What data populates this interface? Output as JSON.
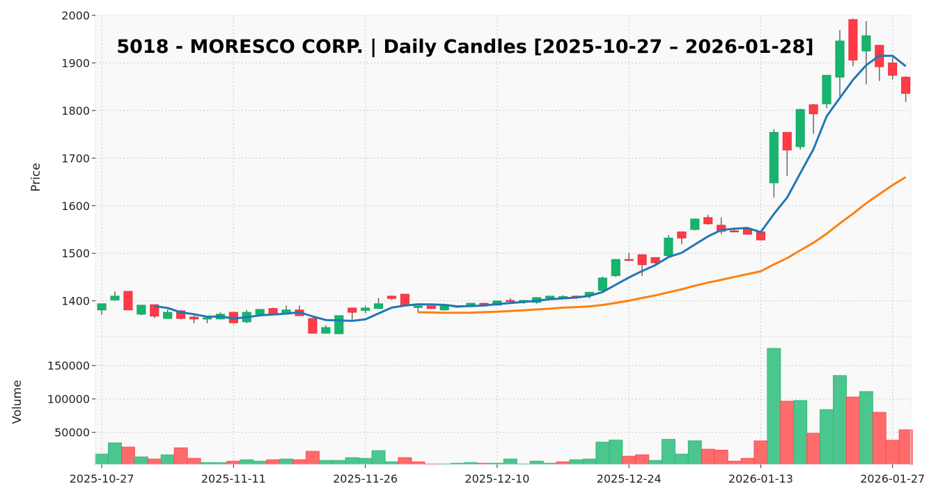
{
  "chart_data": {
    "type": "candlestick",
    "title": "5018 - MORESCO CORP. | Daily Candles [2025-10-27 – 2026-01-28]",
    "price_panel": {
      "ylabel": "Price",
      "ylim": [
        1325,
        2000
      ],
      "yticks": [
        1400,
        1500,
        1600,
        1700,
        1800,
        1900,
        2000
      ],
      "grid": true
    },
    "volume_panel": {
      "ylabel": "Volume",
      "ylim": [
        1800,
        193400
      ],
      "yticks": [
        50000,
        100000,
        150000
      ],
      "grid": true
    },
    "xtick_indices": [
      0,
      10,
      20,
      30,
      40,
      50,
      60
    ],
    "dates": [
      "2025-10-27",
      "2025-10-28",
      "2025-10-29",
      "2025-10-30",
      "2025-10-31",
      "2025-11-04",
      "2025-11-05",
      "2025-11-06",
      "2025-11-07",
      "2025-11-10",
      "2025-11-11",
      "2025-11-12",
      "2025-11-13",
      "2025-11-14",
      "2025-11-17",
      "2025-11-18",
      "2025-11-19",
      "2025-11-20",
      "2025-11-21",
      "2025-11-25",
      "2025-11-26",
      "2025-11-27",
      "2025-11-28",
      "2025-12-01",
      "2025-12-02",
      "2025-12-03",
      "2025-12-04",
      "2025-12-05",
      "2025-12-08",
      "2025-12-09",
      "2025-12-10",
      "2025-12-11",
      "2025-12-12",
      "2025-12-15",
      "2025-12-16",
      "2025-12-17",
      "2025-12-18",
      "2025-12-19",
      "2025-12-22",
      "2025-12-23",
      "2025-12-24",
      "2025-12-25",
      "2025-12-26",
      "2025-12-29",
      "2025-12-30",
      "2026-01-05",
      "2026-01-06",
      "2026-01-07",
      "2026-01-08",
      "2026-01-09",
      "2026-01-13",
      "2026-01-14",
      "2026-01-15",
      "2026-01-16",
      "2026-01-19",
      "2026-01-20",
      "2026-01-21",
      "2026-01-22",
      "2026-01-23",
      "2026-01-26",
      "2026-01-27",
      "2026-01-28"
    ],
    "open": [
      1381,
      1402,
      1420,
      1372,
      1392,
      1363,
      1379,
      1366,
      1362,
      1362,
      1376,
      1356,
      1372,
      1384,
      1373,
      1381,
      1363,
      1332,
      1331,
      1385,
      1380,
      1384,
      1410,
      1414,
      1386,
      1389,
      1381,
      1388,
      1392,
      1395,
      1391,
      1401,
      1398,
      1397,
      1406,
      1406,
      1410,
      1412,
      1422,
      1453,
      1487,
      1497,
      1491,
      1495,
      1545,
      1550,
      1575,
      1559,
      1547,
      1551,
      1545,
      1648,
      1754,
      1724,
      1812,
      1814,
      1870,
      1991,
      1925,
      1937,
      1900,
      1870
    ],
    "high": [
      1394,
      1420,
      1421,
      1391,
      1393,
      1382,
      1381,
      1370,
      1368,
      1376,
      1377,
      1381,
      1383,
      1386,
      1390,
      1390,
      1364,
      1349,
      1369,
      1386,
      1390,
      1406,
      1411,
      1415,
      1395,
      1390,
      1389,
      1390,
      1395,
      1396,
      1400,
      1406,
      1402,
      1407,
      1410,
      1412,
      1411,
      1419,
      1451,
      1488,
      1501,
      1498,
      1492,
      1538,
      1546,
      1573,
      1581,
      1575,
      1554,
      1552,
      1546,
      1761,
      1754,
      1804,
      1814,
      1874,
      1969,
      1993,
      1988,
      1937,
      1912,
      1872
    ],
    "low": [
      1371,
      1400,
      1381,
      1370,
      1364,
      1363,
      1361,
      1353,
      1353,
      1361,
      1352,
      1353,
      1371,
      1372,
      1372,
      1368,
      1332,
      1332,
      1330,
      1361,
      1374,
      1383,
      1402,
      1390,
      1375,
      1383,
      1380,
      1385,
      1387,
      1388,
      1390,
      1396,
      1394,
      1394,
      1405,
      1405,
      1404,
      1405,
      1420,
      1450,
      1484,
      1452,
      1478,
      1494,
      1519,
      1548,
      1560,
      1540,
      1545,
      1539,
      1527,
      1617,
      1662,
      1718,
      1751,
      1805,
      1830,
      1893,
      1855,
      1862,
      1865,
      1818
    ],
    "close": [
      1394,
      1410,
      1381,
      1391,
      1368,
      1376,
      1363,
      1362,
      1364,
      1372,
      1354,
      1376,
      1382,
      1373,
      1381,
      1369,
      1332,
      1344,
      1369,
      1376,
      1385,
      1394,
      1405,
      1391,
      1389,
      1384,
      1389,
      1389,
      1395,
      1394,
      1400,
      1399,
      1401,
      1407,
      1410,
      1409,
      1408,
      1418,
      1448,
      1487,
      1485,
      1476,
      1480,
      1532,
      1532,
      1572,
      1562,
      1546,
      1546,
      1540,
      1528,
      1754,
      1717,
      1802,
      1793,
      1874,
      1946,
      1906,
      1957,
      1892,
      1874,
      1836
    ],
    "volume": [
      17400,
      34200,
      27900,
      13200,
      10000,
      16300,
      26800,
      11000,
      4700,
      4700,
      6800,
      8900,
      6800,
      8900,
      10000,
      8900,
      21600,
      7900,
      7900,
      12100,
      11000,
      22600,
      5800,
      12100,
      5800,
      2600,
      2600,
      3700,
      4700,
      3700,
      3700,
      10000,
      2600,
      6800,
      3700,
      5800,
      8900,
      10000,
      35300,
      38400,
      14200,
      16300,
      7900,
      39500,
      17400,
      37300,
      24700,
      23400,
      6800,
      11000,
      37200,
      175700,
      96600,
      97600,
      48600,
      84000,
      135100,
      102800,
      111100,
      79900,
      38200,
      53800
    ],
    "volume_direction": [
      "up",
      "up",
      "down",
      "up",
      "down",
      "up",
      "down",
      "down",
      "up",
      "up",
      "down",
      "up",
      "up",
      "down",
      "up",
      "down",
      "down",
      "up",
      "up",
      "up",
      "up",
      "up",
      "up",
      "down",
      "down",
      "down",
      "up",
      "up",
      "up",
      "down",
      "up",
      "up",
      "up",
      "up",
      "up",
      "down",
      "up",
      "up",
      "up",
      "up",
      "down",
      "down",
      "up",
      "up",
      "up",
      "up",
      "down",
      "down",
      "down",
      "down",
      "down",
      "up",
      "down",
      "up",
      "down",
      "up",
      "up",
      "down",
      "up",
      "down",
      "down",
      "down"
    ],
    "moving_averages": [
      {
        "period": 5,
        "color": "#1f77b4"
      },
      {
        "period": 25,
        "color": "#ff7f0e"
      }
    ],
    "colors": {
      "candle_up": "#16b46e",
      "candle_down": "#ff3b47",
      "volume_up": "#4bc68e",
      "volume_down": "#ff6b6b",
      "wick": "#666666"
    }
  }
}
